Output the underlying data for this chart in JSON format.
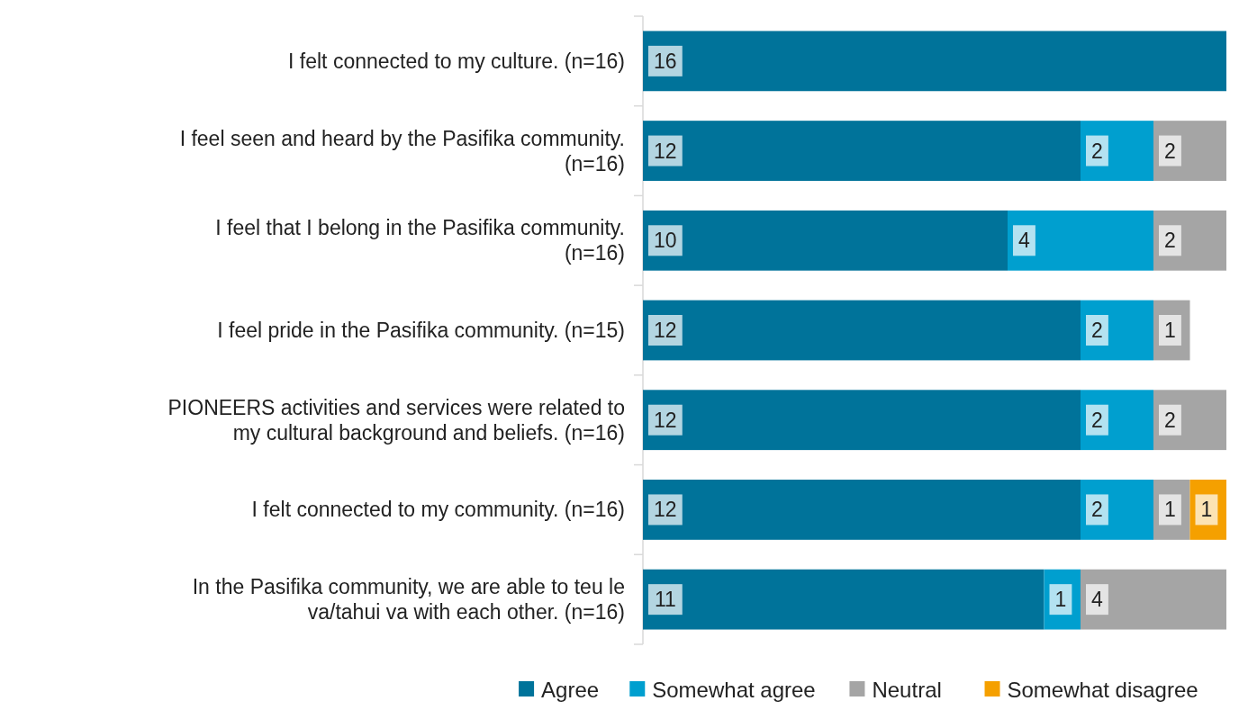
{
  "chart_data": {
    "type": "bar",
    "orientation": "horizontal",
    "stacked": true,
    "data_labels": true,
    "legend": "bottom",
    "tick_labels": "y",
    "xlim": [
      0,
      16
    ],
    "categories": [
      "I felt connected to my culture. (n=16)",
      "I feel seen and heard by the Pasifika community. (n=16)",
      "I feel that I belong in the Pasifika community. (n=16)",
      "I feel pride in the Pasifika community. (n=15)",
      "PIONEERS activities and services were related to my cultural background and beliefs. (n=16)",
      "I felt connected to my community. (n=16)",
      "In the Pasifika community, we are able to teu le va/tahui va with each other. (n=16)"
    ],
    "series": [
      {
        "name": "Agree",
        "color": "#00739a",
        "values": [
          16,
          12,
          10,
          12,
          12,
          12,
          11
        ]
      },
      {
        "name": "Somewhat agree",
        "color": "#009fcf",
        "values": [
          null,
          2,
          4,
          2,
          2,
          2,
          1
        ]
      },
      {
        "name": "Neutral",
        "color": "#a5a5a5",
        "values": [
          null,
          2,
          2,
          1,
          2,
          1,
          4
        ]
      },
      {
        "name": "Somewhat disagree",
        "color": "#f5a000",
        "values": [
          null,
          null,
          null,
          null,
          null,
          1,
          null
        ]
      }
    ]
  }
}
